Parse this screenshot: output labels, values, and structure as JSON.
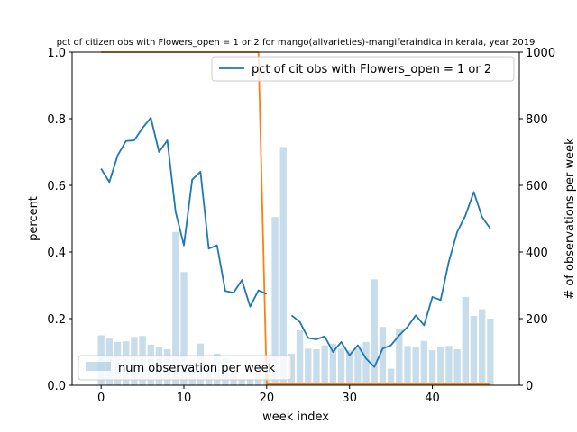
{
  "chart_data": {
    "type": "bar+line",
    "title": "pct of citizen obs with Flowers_open = 1 or 2 for mango(allvarieties)-mangiferaindica in kerala, year 2019",
    "xlabel": "week index",
    "ylabel_left": "percent",
    "ylabel_right": "# of observations per week",
    "xlim": [
      -3.5,
      50.5
    ],
    "ylim_left": [
      0,
      1.0
    ],
    "ylim_right": [
      0,
      1000
    ],
    "xticks": [
      0,
      10,
      20,
      30,
      40
    ],
    "yticks_left": [
      0.0,
      0.2,
      0.4,
      0.6,
      0.8,
      1.0
    ],
    "yticks_right": [
      0,
      200,
      400,
      600,
      800,
      1000
    ],
    "legend_left": "pct of cit obs with Flowers_open = 1 or 2",
    "legend_bars": "num observation per week",
    "bar_series": {
      "name": "num observation per week",
      "color": "#1f77b4",
      "opacity": 0.25,
      "x": [
        0,
        1,
        2,
        3,
        4,
        5,
        6,
        7,
        8,
        9,
        10,
        11,
        12,
        13,
        14,
        15,
        16,
        17,
        18,
        19,
        20,
        21,
        22,
        23,
        24,
        25,
        26,
        27,
        28,
        29,
        30,
        31,
        32,
        33,
        34,
        35,
        36,
        37,
        38,
        39,
        40,
        41,
        42,
        43,
        44,
        45,
        46,
        47
      ],
      "values": [
        150,
        140,
        130,
        132,
        145,
        148,
        122,
        115,
        108,
        460,
        340,
        70,
        125,
        70,
        95,
        80,
        40,
        20,
        20,
        65,
        90,
        505,
        715,
        95,
        165,
        110,
        108,
        120,
        125,
        110,
        105,
        110,
        130,
        318,
        175,
        50,
        170,
        118,
        115,
        133,
        105,
        115,
        118,
        108,
        265,
        208,
        228,
        200
      ]
    },
    "line_series": {
      "name": "pct of cit obs with Flowers_open = 1 or 2",
      "color": "#1f77b4",
      "x": [
        0,
        1,
        2,
        3,
        4,
        5,
        6,
        7,
        8,
        9,
        10,
        11,
        12,
        13,
        14,
        15,
        16,
        17,
        18,
        19,
        20,
        21,
        22,
        23,
        24,
        25,
        26,
        27,
        28,
        29,
        30,
        31,
        32,
        33,
        34,
        35,
        36,
        37,
        38,
        39,
        40,
        41,
        42,
        43,
        44,
        45,
        46,
        47
      ],
      "values": [
        0.65,
        0.61,
        0.69,
        0.733,
        0.735,
        0.772,
        0.803,
        0.7,
        0.735,
        0.52,
        0.42,
        0.617,
        0.641,
        0.41,
        0.42,
        0.283,
        0.278,
        0.316,
        0.236,
        0.285,
        0.274,
        null,
        null,
        0.21,
        0.19,
        0.142,
        0.138,
        0.147,
        0.1,
        0.13,
        0.09,
        0.12,
        0.08,
        0.055,
        0.11,
        0.12,
        0.15,
        0.175,
        0.21,
        0.18,
        0.265,
        0.256,
        0.372,
        0.46,
        0.51,
        0.58,
        0.505,
        0.47
      ]
    },
    "step_series": {
      "color": "#ff7f0e",
      "x": [
        0,
        19,
        20,
        47
      ],
      "values_right_axis": [
        1000,
        1000,
        3,
        3
      ]
    }
  }
}
